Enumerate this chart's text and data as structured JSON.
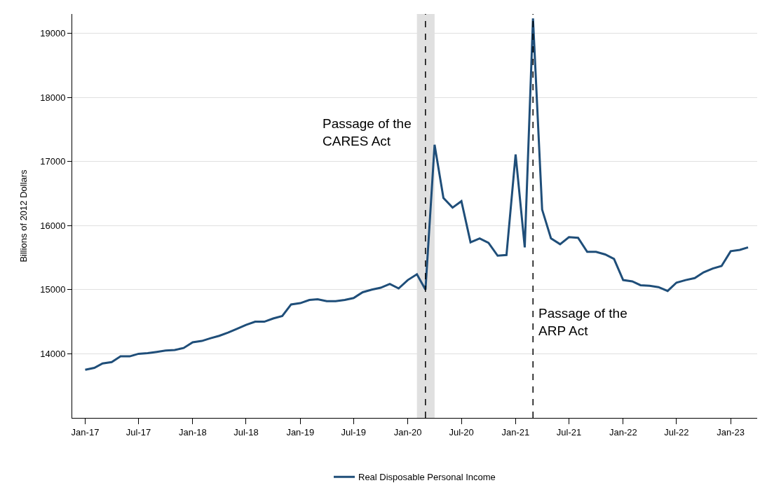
{
  "chart_data": {
    "type": "line",
    "ylabel": "Billions of 2012 Dollars",
    "x": [
      "2017-01",
      "2017-02",
      "2017-03",
      "2017-04",
      "2017-05",
      "2017-06",
      "2017-07",
      "2017-08",
      "2017-09",
      "2017-10",
      "2017-11",
      "2017-12",
      "2018-01",
      "2018-02",
      "2018-03",
      "2018-04",
      "2018-05",
      "2018-06",
      "2018-07",
      "2018-08",
      "2018-09",
      "2018-10",
      "2018-11",
      "2018-12",
      "2019-01",
      "2019-02",
      "2019-03",
      "2019-04",
      "2019-05",
      "2019-06",
      "2019-07",
      "2019-08",
      "2019-09",
      "2019-10",
      "2019-11",
      "2019-12",
      "2020-01",
      "2020-02",
      "2020-03",
      "2020-04",
      "2020-05",
      "2020-06",
      "2020-07",
      "2020-08",
      "2020-09",
      "2020-10",
      "2020-11",
      "2020-12",
      "2021-01",
      "2021-02",
      "2021-03",
      "2021-04",
      "2021-05",
      "2021-06",
      "2021-07",
      "2021-08",
      "2021-09",
      "2021-10",
      "2021-11",
      "2021-12",
      "2022-01",
      "2022-02",
      "2022-03",
      "2022-04",
      "2022-05",
      "2022-06",
      "2022-07",
      "2022-08",
      "2022-09",
      "2022-10",
      "2022-11",
      "2022-12",
      "2023-01",
      "2023-02",
      "2023-03"
    ],
    "series": [
      {
        "name": "Real Disposable Personal Income",
        "color": "#1f4e79",
        "values": [
          13750,
          13780,
          13850,
          13870,
          13960,
          13960,
          14000,
          14010,
          14030,
          14050,
          14060,
          14090,
          14180,
          14200,
          14240,
          14280,
          14330,
          14390,
          14450,
          14500,
          14500,
          14550,
          14590,
          14770,
          14790,
          14840,
          14850,
          14820,
          14820,
          14840,
          14870,
          14960,
          15000,
          15030,
          15090,
          15020,
          15150,
          15240,
          15000,
          17260,
          16430,
          16280,
          16380,
          15740,
          15800,
          15730,
          15530,
          15540,
          17110,
          15660,
          19230,
          16250,
          15800,
          15710,
          15820,
          15810,
          15590,
          15590,
          15550,
          15480,
          15150,
          15130,
          15070,
          15060,
          15040,
          14980,
          15110,
          15150,
          15180,
          15270,
          15330,
          15370,
          15600,
          15620,
          15660
        ]
      }
    ],
    "xlim": [
      "2016-11-18",
      "2023-04-01"
    ],
    "xticks": [
      {
        "value": "2017-01",
        "label": "Jan-17"
      },
      {
        "value": "2017-07",
        "label": "Jul-17"
      },
      {
        "value": "2018-01",
        "label": "Jan-18"
      },
      {
        "value": "2018-07",
        "label": "Jul-18"
      },
      {
        "value": "2019-01",
        "label": "Jan-19"
      },
      {
        "value": "2019-07",
        "label": "Jul-19"
      },
      {
        "value": "2020-01",
        "label": "Jan-20"
      },
      {
        "value": "2020-07",
        "label": "Jul-20"
      },
      {
        "value": "2021-01",
        "label": "Jan-21"
      },
      {
        "value": "2021-07",
        "label": "Jul-21"
      },
      {
        "value": "2022-01",
        "label": "Jan-22"
      },
      {
        "value": "2022-07",
        "label": "Jul-22"
      },
      {
        "value": "2023-01",
        "label": "Jan-23"
      }
    ],
    "ylim": [
      13000,
      19300
    ],
    "yticks": [
      14000,
      15000,
      16000,
      17000,
      18000,
      19000
    ],
    "ref_lines": [
      {
        "axis": "x",
        "value": "2020-03",
        "label": "Passage of the\nCARES Act",
        "color": "#000000",
        "line_style": "dashed"
      },
      {
        "axis": "x",
        "value": "2021-03",
        "label": "Passage of the\nARP Act",
        "color": "#000000",
        "line_style": "dashed"
      }
    ],
    "bands": [
      {
        "axis": "x",
        "from": "2020-02",
        "to": "2020-04",
        "color": "#e0e0e0"
      }
    ],
    "grid": "y",
    "legend": "bottom",
    "marker": "none",
    "line_style": "solid"
  }
}
